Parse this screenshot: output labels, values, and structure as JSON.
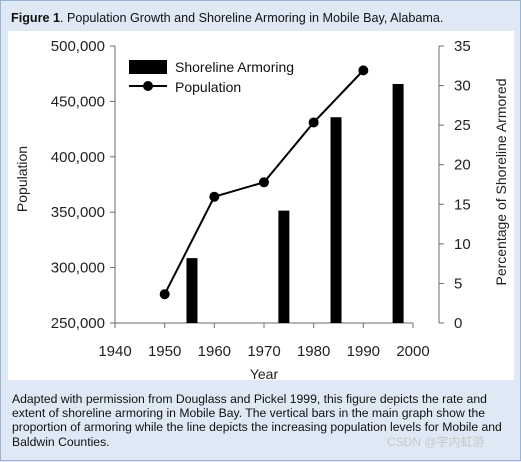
{
  "figure": {
    "label": "Figure 1",
    "title": ". Population Growth and Shoreline Armoring in Mobile Bay, Alabama.",
    "description": "Adapted with permission from Douglass and Pickel 1999, this figure depicts the rate and extent of shoreline armoring in Mobile Bay. The vertical bars in the main graph show the proportion of armoring while the line depicts the increasing population levels for Mobile and Baldwin Counties.",
    "watermark": "CSDN @宇内虹游"
  },
  "colors": {
    "panel_background": "#dfe9f5",
    "plot_background": "#ffffff",
    "bars": "#000000",
    "line": "#000000"
  },
  "chart_data": {
    "type": "bar",
    "title": "",
    "xlabel": "Year",
    "ylabel": "Population",
    "y2label": "Percentage of Shoreline Armored",
    "xlim": [
      1940,
      2000
    ],
    "xticks": [
      1940,
      1950,
      1960,
      1970,
      1980,
      1990,
      2000
    ],
    "ylim": [
      250000,
      500000
    ],
    "yticks": [
      "250,000",
      "300,000",
      "350,000",
      "400,000",
      "450,000",
      "500,000"
    ],
    "y2lim": [
      0,
      35
    ],
    "y2ticks": [
      0,
      5,
      10,
      15,
      20,
      25,
      30,
      35
    ],
    "grid": false,
    "legend_position": "top-left",
    "series": [
      {
        "name": "Shoreline Armoring",
        "type": "bar",
        "axis": "right",
        "x": [
          1955.5,
          1974,
          1984.5,
          1997
        ],
        "values": [
          8.2,
          14.2,
          26,
          30.2
        ]
      },
      {
        "name": "Population",
        "type": "line",
        "marker": "circle",
        "axis": "left",
        "x": [
          1950,
          1960,
          1970,
          1980,
          1990
        ],
        "values": [
          276000,
          364000,
          377000,
          431000,
          478000
        ]
      }
    ]
  }
}
